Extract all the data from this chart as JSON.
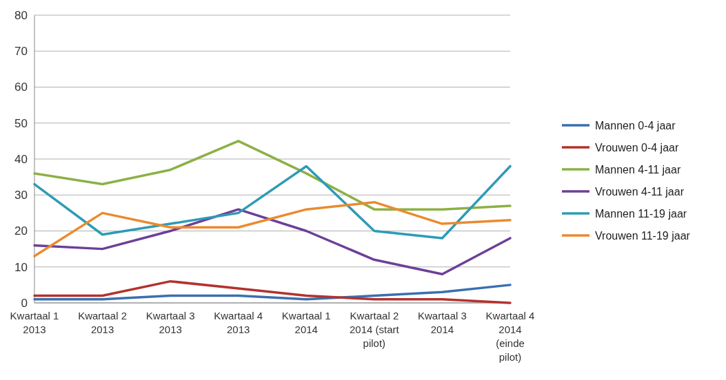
{
  "chart_data": {
    "type": "line",
    "categories": [
      "Kwartaal 1\n2013",
      "Kwartaal 2\n2013",
      "Kwartaal 3\n2013",
      "Kwartaal 4\n2013",
      "Kwartaal 1\n2014",
      "Kwartaal 2\n2014 (start\npilot)",
      "Kwartaal 3\n2014",
      "Kwartaal 4\n2014\n(einde\npilot)"
    ],
    "series": [
      {
        "name": "Mannen 0-4 jaar",
        "color": "#3a6fb0",
        "values": [
          1,
          1,
          2,
          2,
          1,
          2,
          3,
          5
        ]
      },
      {
        "name": "Vrouwen 0-4 jaar",
        "color": "#b3322e",
        "values": [
          2,
          2,
          6,
          4,
          2,
          1,
          1,
          0
        ]
      },
      {
        "name": "Mannen 4-11 jaar",
        "color": "#8db045",
        "values": [
          36,
          33,
          37,
          45,
          36,
          26,
          26,
          27
        ]
      },
      {
        "name": "Vrouwen 4-11 jaar",
        "color": "#6d3f98",
        "values": [
          16,
          15,
          20,
          26,
          20,
          12,
          8,
          18
        ]
      },
      {
        "name": "Mannen 11-19 jaar",
        "color": "#2e9bb5",
        "values": [
          33,
          19,
          22,
          25,
          38,
          20,
          18,
          38
        ]
      },
      {
        "name": "Vrouwen 11-19 jaar",
        "color": "#eb8a2f",
        "values": [
          13,
          25,
          21,
          21,
          26,
          28,
          22,
          23
        ]
      }
    ],
    "ylim": [
      0,
      80
    ],
    "yticks": [
      0,
      10,
      20,
      30,
      40,
      50,
      60,
      70,
      80
    ],
    "grid": "y",
    "legend": "right",
    "marker": "none",
    "line_style": "solid"
  }
}
